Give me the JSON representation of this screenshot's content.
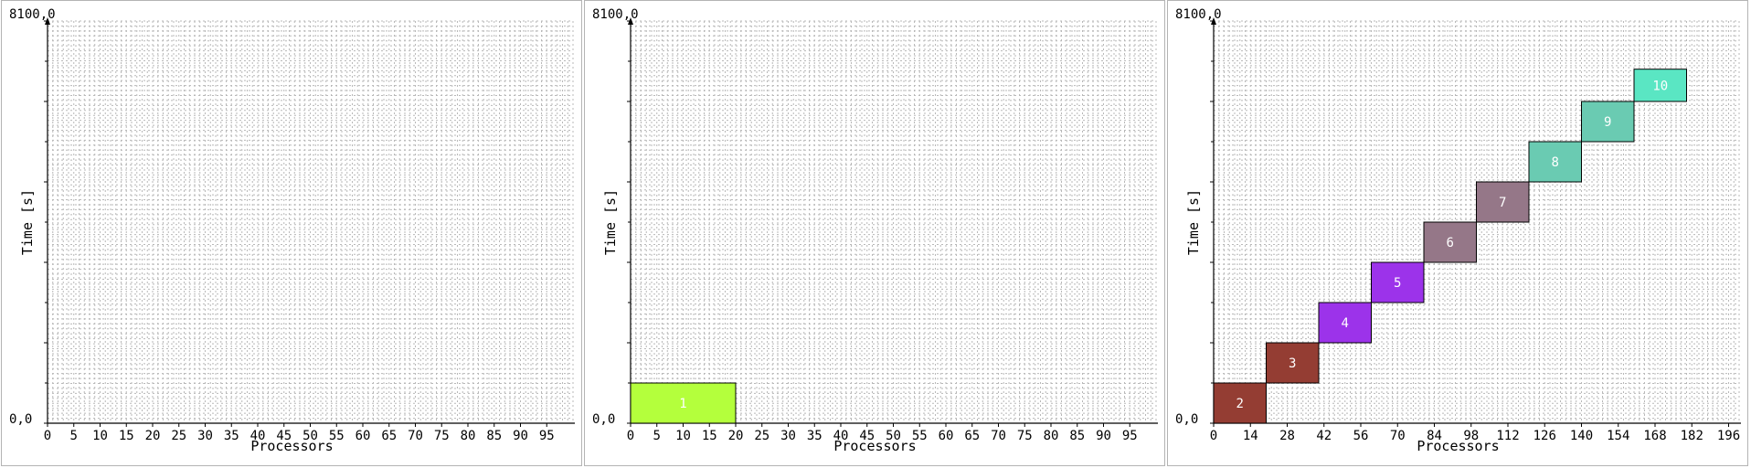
{
  "chart_data": [
    {
      "type": "gantt",
      "xlabel": "Processors",
      "ylabel": "Time [s]",
      "ymax_label": "8100,0",
      "ymin_label": "0,0",
      "xlim": [
        0,
        100
      ],
      "ylim": [
        0,
        8100
      ],
      "xticks": [
        0,
        5,
        10,
        15,
        20,
        25,
        30,
        35,
        40,
        45,
        50,
        55,
        60,
        65,
        70,
        75,
        80,
        85,
        90,
        95
      ],
      "grid": true,
      "jobs": []
    },
    {
      "type": "gantt",
      "xlabel": "Processors",
      "ylabel": "Time [s]",
      "ymax_label": "8100,0",
      "ymin_label": "0,0",
      "xlim": [
        0,
        100
      ],
      "ylim": [
        0,
        8100
      ],
      "xticks": [
        0,
        5,
        10,
        15,
        20,
        25,
        30,
        35,
        40,
        45,
        50,
        55,
        60,
        65,
        70,
        75,
        80,
        85,
        90,
        95
      ],
      "grid": true,
      "jobs": [
        {
          "label": "1",
          "x0": 0,
          "x1": 20,
          "y0": 0,
          "y1": 810,
          "color": "#b4ff3c"
        }
      ]
    },
    {
      "type": "gantt",
      "xlabel": "Processors",
      "ylabel": "Time [s]",
      "ymax_label": "8100,0",
      "ymin_label": "0,0",
      "xlim": [
        0,
        200
      ],
      "ylim": [
        0,
        8100
      ],
      "xticks": [
        0,
        14,
        28,
        42,
        56,
        70,
        84,
        98,
        112,
        126,
        140,
        154,
        168,
        182,
        196
      ],
      "grid": true,
      "jobs": [
        {
          "label": "2",
          "x0": 0,
          "x1": 20,
          "y0": 0,
          "y1": 810,
          "color": "#943d33"
        },
        {
          "label": "3",
          "x0": 20,
          "x1": 40,
          "y0": 810,
          "y1": 1620,
          "color": "#943d33"
        },
        {
          "label": "4",
          "x0": 40,
          "x1": 60,
          "y0": 1620,
          "y1": 2430,
          "color": "#9c33ea"
        },
        {
          "label": "5",
          "x0": 60,
          "x1": 80,
          "y0": 2430,
          "y1": 3240,
          "color": "#9c33ea"
        },
        {
          "label": "6",
          "x0": 80,
          "x1": 100,
          "y0": 3240,
          "y1": 4050,
          "color": "#957788"
        },
        {
          "label": "7",
          "x0": 100,
          "x1": 120,
          "y0": 4050,
          "y1": 4860,
          "color": "#957788"
        },
        {
          "label": "8",
          "x0": 120,
          "x1": 140,
          "y0": 4860,
          "y1": 5670,
          "color": "#6acbb2"
        },
        {
          "label": "9",
          "x0": 140,
          "x1": 160,
          "y0": 5670,
          "y1": 6480,
          "color": "#6acbb2"
        },
        {
          "label": "10",
          "x0": 160,
          "x1": 180,
          "y0": 6480,
          "y1": 7130,
          "color": "#5ae6c3"
        }
      ]
    }
  ]
}
